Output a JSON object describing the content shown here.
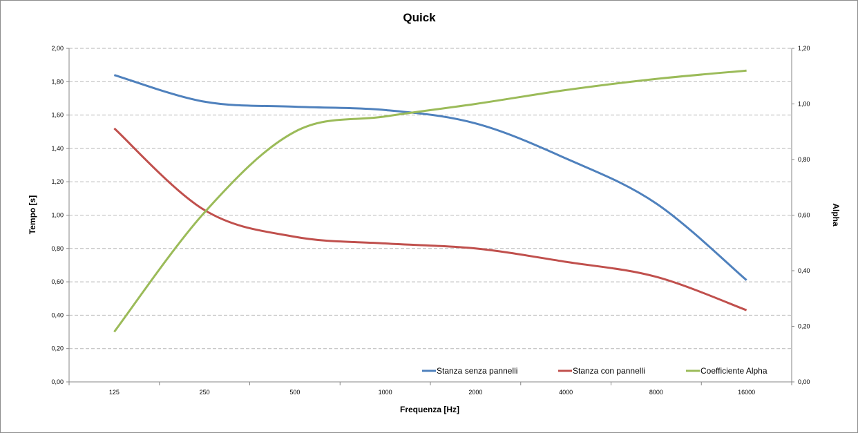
{
  "chart_data": {
    "type": "line",
    "title": "Quick",
    "xlabel": "Frequenza [Hz]",
    "ylabel": "Tempo [s]",
    "y2label": "Alpha",
    "categories": [
      "125",
      "250",
      "500",
      "1000",
      "2000",
      "4000",
      "8000",
      "16000"
    ],
    "ylim": [
      0,
      2
    ],
    "y2lim": [
      0,
      1.2
    ],
    "yticks": [
      "0,00",
      "0,20",
      "0,40",
      "0,60",
      "0,80",
      "1,00",
      "1,20",
      "1,40",
      "1,60",
      "1,80",
      "2,00"
    ],
    "y2ticks": [
      "0,00",
      "0,20",
      "0,40",
      "0,60",
      "0,80",
      "1,00",
      "1,20"
    ],
    "grid": true,
    "legend_position": "bottom-right",
    "series": [
      {
        "name": "Stanza senza pannelli",
        "axis": "left",
        "color": "#4f81bd",
        "values": [
          1.84,
          1.68,
          1.65,
          1.63,
          1.55,
          1.34,
          1.07,
          0.61
        ]
      },
      {
        "name": "Stanza con pannelli",
        "axis": "left",
        "color": "#c0504d",
        "values": [
          1.52,
          1.03,
          0.87,
          0.83,
          0.8,
          0.72,
          0.63,
          0.43
        ]
      },
      {
        "name": "Coefficiente Alpha",
        "axis": "right",
        "color": "#9bbb59",
        "values": [
          0.18,
          0.61,
          0.9,
          0.955,
          1.0,
          1.05,
          1.09,
          1.12
        ]
      }
    ]
  }
}
